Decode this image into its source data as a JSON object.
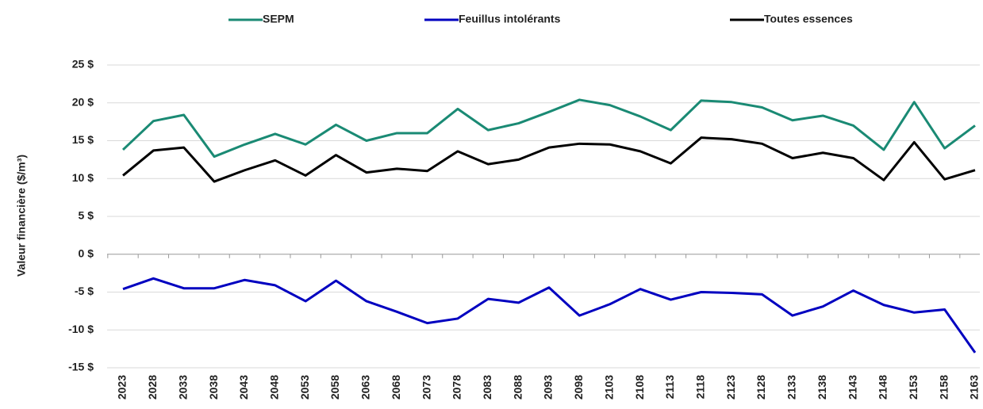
{
  "chart_data": {
    "type": "line",
    "y_label": "Valeur  financière  ($/m³)",
    "categories": [
      "2023",
      "2028",
      "2033",
      "2038",
      "2043",
      "2048",
      "2053",
      "2058",
      "2063",
      "2068",
      "2073",
      "2078",
      "2083",
      "2088",
      "2093",
      "2098",
      "2103",
      "2108",
      "2113",
      "2118",
      "2123",
      "2128",
      "2133",
      "2138",
      "2143",
      "2148",
      "2153",
      "2158",
      "2163"
    ],
    "series": [
      {
        "name": "SEPM",
        "color": "#1a8a74",
        "values": [
          13.8,
          17.6,
          18.4,
          12.9,
          14.5,
          15.9,
          14.5,
          17.1,
          15.0,
          16.0,
          16.0,
          19.2,
          16.4,
          17.3,
          18.8,
          20.4,
          19.7,
          18.2,
          16.4,
          20.3,
          20.1,
          19.4,
          17.7,
          18.3,
          17.0,
          13.8,
          20.1,
          14.0,
          17.0
        ]
      },
      {
        "name": "Feuillus intolérants",
        "color": "#0000c0",
        "values": [
          -4.6,
          -3.2,
          -4.5,
          -4.5,
          -3.4,
          -4.1,
          -6.2,
          -3.5,
          -6.2,
          -7.6,
          -9.1,
          -8.5,
          -5.9,
          -6.4,
          -4.4,
          -8.1,
          -6.6,
          -4.6,
          -6.0,
          -5.0,
          -5.1,
          -5.3,
          -8.1,
          -6.9,
          -4.8,
          -6.7,
          -7.7,
          -7.3,
          -13.0
        ]
      },
      {
        "name": "Toutes essences",
        "color": "#000000",
        "values": [
          10.4,
          13.7,
          14.1,
          9.6,
          11.1,
          12.4,
          10.4,
          13.1,
          10.8,
          11.3,
          11.0,
          13.6,
          11.9,
          12.5,
          14.1,
          14.6,
          14.5,
          13.6,
          12.0,
          15.4,
          15.2,
          14.6,
          12.7,
          13.4,
          12.7,
          9.8,
          14.8,
          9.9,
          11.1
        ]
      }
    ],
    "ylim": [
      -15,
      25
    ],
    "yticks": [
      {
        "value": -15,
        "label": "-15 $"
      },
      {
        "value": -10,
        "label": "-10 $"
      },
      {
        "value": -5,
        "label": "-5 $"
      },
      {
        "value": 0,
        "label": "0 $"
      },
      {
        "value": 5,
        "label": "5 $"
      },
      {
        "value": 10,
        "label": "10 $"
      },
      {
        "value": 15,
        "label": "15 $"
      },
      {
        "value": 20,
        "label": "20 $"
      },
      {
        "value": 25,
        "label": "25 $"
      }
    ],
    "grid": true,
    "legend": "top"
  }
}
